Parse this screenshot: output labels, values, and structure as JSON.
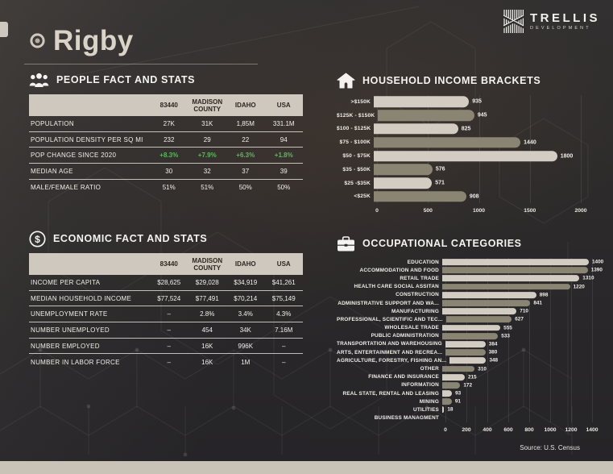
{
  "header": {
    "title": "Rigby",
    "logo_name": "TRELLIS",
    "logo_sub": "DEVELOPMENT"
  },
  "people": {
    "title": "PEOPLE FACT AND STATS",
    "columns": [
      "83440",
      "MADISON COUNTY",
      "IDAHO",
      "USA"
    ],
    "rows": [
      {
        "label": "POPULATION",
        "values": [
          "27K",
          "31K",
          "1,85M",
          "331.1M"
        ]
      },
      {
        "label": "POPULATION DENSITY PER SQ MI",
        "values": [
          "232",
          "29",
          "22",
          "94"
        ]
      },
      {
        "label": "POP CHANGE SINCE 2020",
        "values": [
          "+8.3%",
          "+7.9%",
          "+6.3%",
          "+1.8%"
        ],
        "highlight": true
      },
      {
        "label": "MEDIAN AGE",
        "values": [
          "30",
          "32",
          "37",
          "39"
        ]
      },
      {
        "label": "MALE/FEMALE RATIO",
        "values": [
          "51%",
          "51%",
          "50%",
          "50%"
        ]
      }
    ]
  },
  "economic": {
    "title": "ECONOMIC FACT AND STATS",
    "columns": [
      "83440",
      "MADISON COUNTY",
      "IDAHO",
      "USA"
    ],
    "rows": [
      {
        "label": "INCOME PER CAPITA",
        "values": [
          "$28,625",
          "$29,028",
          "$34,919",
          "$41,261"
        ]
      },
      {
        "label": "MEDIAN HOUSEHOLD INCOME",
        "values": [
          "$77,524",
          "$77,491",
          "$70,214",
          "$75,149"
        ]
      },
      {
        "label": "UNEMPLOYMENT RATE",
        "values": [
          "–",
          "2.8%",
          "3.4%",
          "4.3%"
        ]
      },
      {
        "label": "NUMBER UNEMPLOYED",
        "values": [
          "–",
          "454",
          "34K",
          "7.16M"
        ]
      },
      {
        "label": "NUMBER EMPLOYED",
        "values": [
          "–",
          "16K",
          "996K",
          "–"
        ]
      },
      {
        "label": "NUMBER IN LABOR FORCE",
        "values": [
          "–",
          "16K",
          "1M",
          "–"
        ]
      }
    ]
  },
  "chart_data": [
    {
      "type": "bar",
      "orientation": "horizontal",
      "title": "HOUSEHOLD INCOME BRACKETS",
      "categories": [
        ">$150K",
        "$125K - $150K",
        "$100 - $125K",
        "$75 - $100K",
        "$50 - $75K",
        "$35 - $50K",
        "$25 -$35K",
        "<$25K"
      ],
      "values": [
        935,
        945,
        825,
        1440,
        1800,
        576,
        571,
        908
      ],
      "xlim": [
        0,
        2000
      ],
      "xticks": [
        0,
        500,
        1000,
        1500,
        2000
      ],
      "grid": "vertical",
      "legend": "none"
    },
    {
      "type": "bar",
      "orientation": "horizontal",
      "title": "OCCUPATIONAL CATEGORIES",
      "categories": [
        "EDUCATION",
        "ACCOMMODATION AND FOOD",
        "RETAIL TRADE",
        "HEALTH CARE SOCIAL ASSITAN",
        "CONSTRUCTION",
        "ADMINISTRATIVE SUPPORT AND WA...",
        "MANUFACTURING",
        "PROFESSIONAL, SCIENTIFIC AND TEC...",
        "WHOLESALE TRADE",
        "PUBLIC ADMINISTRATION",
        "TRANSPORTATION AND WAREHOUSING",
        "ARTS, ENTERTAINMENT AND RECREA...",
        "AGRICULTURE, FORESTRY, FISHING AN...",
        "OTHER",
        "FINANCE AND INSURANCE",
        "INFORMATION",
        "REAL STATE, RENTAL AND LEASING",
        "MINING",
        "UTILITIES",
        "BUSINESS MANAGMENT"
      ],
      "values": [
        1400,
        1390,
        1310,
        1220,
        898,
        841,
        710,
        627,
        555,
        533,
        384,
        380,
        348,
        310,
        215,
        172,
        93,
        91,
        18,
        0
      ],
      "xlim": [
        0,
        1400
      ],
      "xticks": [
        0,
        200,
        400,
        600,
        800,
        1000,
        1200,
        1400
      ],
      "grid": "vertical",
      "legend": "none"
    }
  ],
  "footer": {
    "source": "Source: U.S. Census"
  },
  "colors": {
    "bar_light": "#d3ccc2",
    "bar_olive": "#8a8573",
    "table_header_bg": "#cfc8be",
    "table_header_text": "#2b2722",
    "positive_green": "#5cb85e",
    "text_light": "#f2efe9",
    "bottom_strip": "#c9c2b7"
  }
}
